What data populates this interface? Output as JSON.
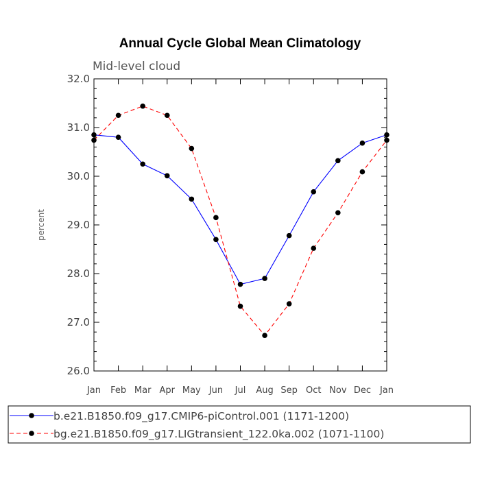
{
  "chart_data": {
    "type": "line",
    "title": "Annual Cycle Global Mean Climatology",
    "subtitle": "Mid-level cloud",
    "xlabel": "",
    "ylabel": "percent",
    "categories": [
      "Jan",
      "Feb",
      "Mar",
      "Apr",
      "May",
      "Jun",
      "Jul",
      "Aug",
      "Sep",
      "Oct",
      "Nov",
      "Dec",
      "Jan"
    ],
    "ylim": [
      26.0,
      32.0
    ],
    "yticks": [
      "26.0",
      "27.0",
      "28.0",
      "29.0",
      "30.0",
      "31.0",
      "32.0"
    ],
    "series": [
      {
        "name": "b.e21.B1850.f09_g17.CMIP6-piControl.001 (1171-1200)",
        "color": "#0000ff",
        "dash": "solid",
        "values": [
          30.85,
          30.8,
          30.25,
          30.01,
          29.53,
          28.7,
          27.78,
          27.9,
          28.78,
          29.68,
          30.32,
          30.68,
          30.85
        ]
      },
      {
        "name": "bg.e21.B1850.f09_g17.LIGtransient_122.0ka.002 (1071-1100)",
        "color": "#ff0000",
        "dash": "dashed",
        "values": [
          30.74,
          31.25,
          31.44,
          31.25,
          30.57,
          29.15,
          27.33,
          26.73,
          27.38,
          28.52,
          29.25,
          30.09,
          30.74
        ]
      }
    ],
    "grid": false,
    "legend_position": "bottom"
  }
}
